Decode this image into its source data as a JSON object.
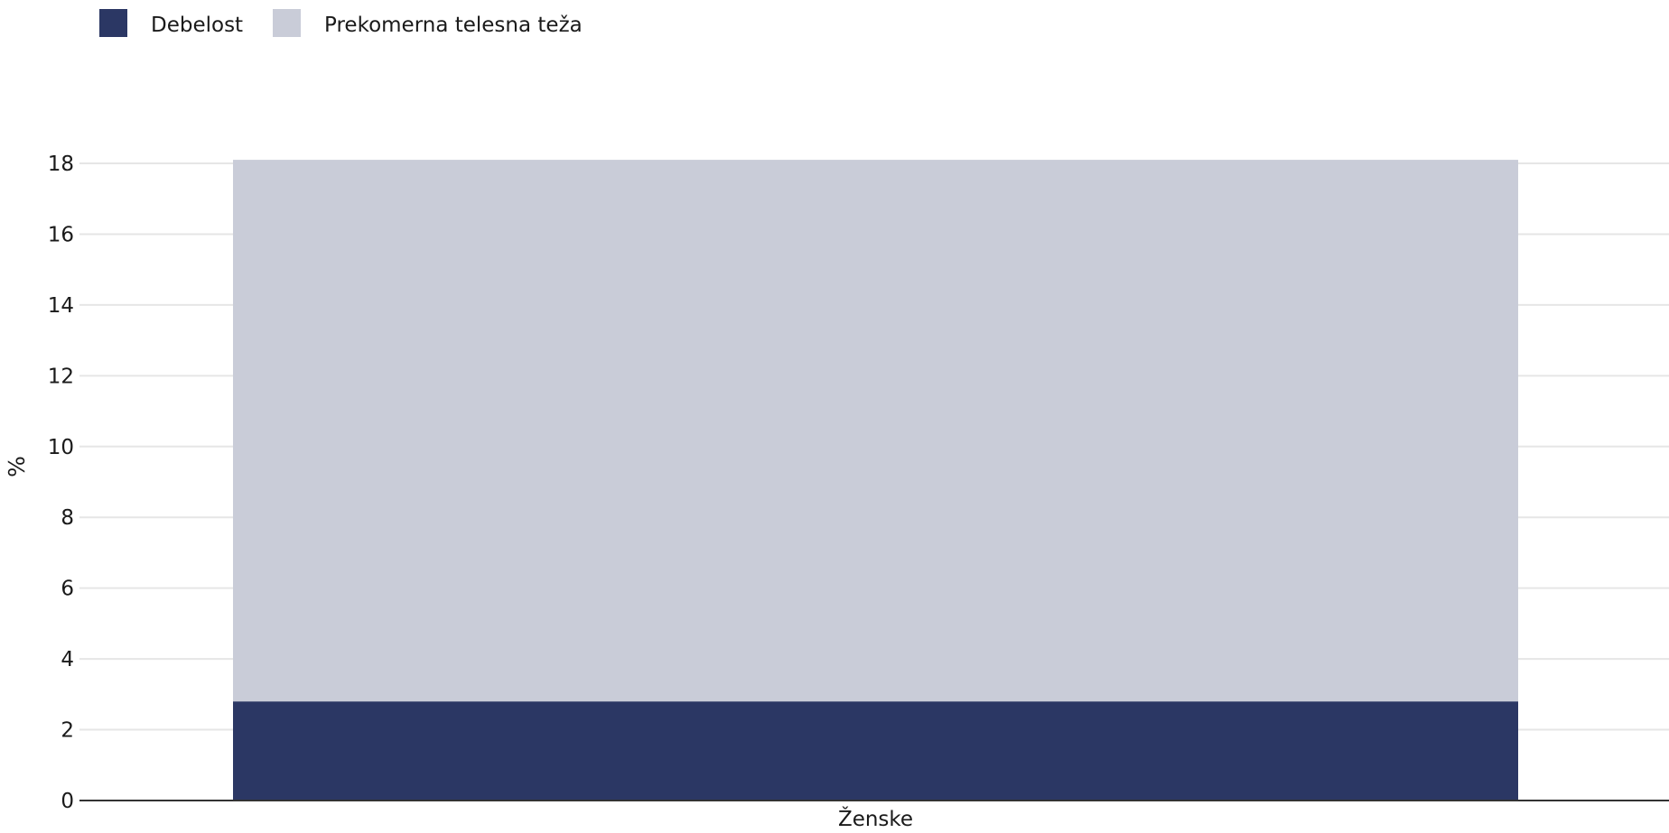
{
  "chart_data": {
    "type": "bar",
    "stacked": true,
    "categories": [
      "Ženske"
    ],
    "series": [
      {
        "name": "Debelost",
        "color": "#2b3764",
        "values": [
          2.8
        ]
      },
      {
        "name": "Prekomerna telesna teža",
        "color": "#c9ccd8",
        "values": [
          15.3
        ]
      }
    ],
    "ylabel": "%",
    "xlabel": "",
    "ylim": [
      0,
      18
    ],
    "yticks": [
      0,
      2,
      4,
      6,
      8,
      10,
      12,
      14,
      16,
      18
    ],
    "grid": true,
    "legend_position": "top-left"
  }
}
